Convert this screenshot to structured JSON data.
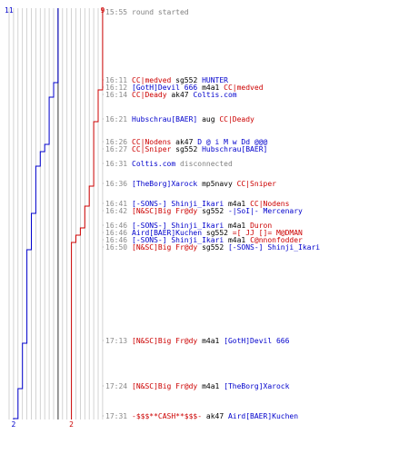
{
  "teams": {
    "blue": {
      "color": "#0000cc",
      "start_score": "11",
      "end_score": "2"
    },
    "red": {
      "color": "#cc0000",
      "start_score": "9",
      "end_score": "2"
    }
  },
  "colors": {
    "time": "#888888",
    "text_gray": "#808080",
    "grid": "#c8c8c8",
    "dash": "#aaaaaa",
    "axis": "#555555"
  },
  "events": [
    {
      "time": "15:55",
      "segments": [
        {
          "text": "round started",
          "color": "#808080"
        }
      ]
    },
    {
      "time": "16:11",
      "segments": [
        {
          "text": "CC|medved",
          "color": "#cc0000"
        },
        {
          "text": " sg552 ",
          "color": "#000000"
        },
        {
          "text": "HUNTER",
          "color": "#0000cc"
        }
      ]
    },
    {
      "time": "16:12",
      "segments": [
        {
          "text": "[GotH]Devil 666",
          "color": "#0000cc"
        },
        {
          "text": " m4a1 ",
          "color": "#000000"
        },
        {
          "text": "CC|medved",
          "color": "#cc0000"
        }
      ]
    },
    {
      "time": "16:14",
      "segments": [
        {
          "text": "CC|Deady",
          "color": "#cc0000"
        },
        {
          "text": " ak47 ",
          "color": "#000000"
        },
        {
          "text": "Coltis.com",
          "color": "#0000cc"
        }
      ]
    },
    {
      "time": "16:21",
      "segments": [
        {
          "text": "Hubschrau[BAER]",
          "color": "#0000cc"
        },
        {
          "text": " aug ",
          "color": "#000000"
        },
        {
          "text": "CC|Deady",
          "color": "#cc0000"
        }
      ]
    },
    {
      "time": "16:26",
      "segments": [
        {
          "text": "CC|Nodens",
          "color": "#cc0000"
        },
        {
          "text": " ak47 ",
          "color": "#000000"
        },
        {
          "text": "D @ i  M w Dd @@@",
          "color": "#0000cc"
        }
      ]
    },
    {
      "time": "16:27",
      "segments": [
        {
          "text": "CC|Sniper",
          "color": "#cc0000"
        },
        {
          "text": " sg552 ",
          "color": "#000000"
        },
        {
          "text": "Hubschrau[BAER]",
          "color": "#0000cc"
        }
      ]
    },
    {
      "time": "16:31",
      "segments": [
        {
          "text": "Coltis.com",
          "color": "#0000cc"
        },
        {
          "text": " disconnected",
          "color": "#808080"
        }
      ]
    },
    {
      "time": "16:36",
      "segments": [
        {
          "text": "[TheBorg]Xarock",
          "color": "#0000cc"
        },
        {
          "text": " mp5navy ",
          "color": "#000000"
        },
        {
          "text": "CC|Sniper",
          "color": "#cc0000"
        }
      ]
    },
    {
      "time": "16:41",
      "segments": [
        {
          "text": "[-SONS-] Shinji_Ikari",
          "color": "#0000cc"
        },
        {
          "text": " m4a1 ",
          "color": "#000000"
        },
        {
          "text": "CC|Nodens",
          "color": "#cc0000"
        }
      ]
    },
    {
      "time": "16:42",
      "segments": [
        {
          "text": "[N&SC]Big Fr@dy",
          "color": "#cc0000"
        },
        {
          "text": " sg552 ",
          "color": "#000000"
        },
        {
          "text": "-|SoI|- Mercenary",
          "color": "#0000cc"
        }
      ]
    },
    {
      "time": "16:46",
      "segments": [
        {
          "text": "[-SONS-] Shinji_Ikari",
          "color": "#0000cc"
        },
        {
          "text": " m4a1 ",
          "color": "#000000"
        },
        {
          "text": "Duron",
          "color": "#cc0000"
        }
      ]
    },
    {
      "time": "16:46",
      "segments": [
        {
          "text": "Aird[BAER]Kuchen",
          "color": "#0000cc"
        },
        {
          "text": " sg552 ",
          "color": "#000000"
        },
        {
          "text": "=[ JJ []= M@DMAN",
          "color": "#cc0000"
        }
      ]
    },
    {
      "time": "16:46",
      "segments": [
        {
          "text": "[-SONS-] Shinji_Ikari",
          "color": "#0000cc"
        },
        {
          "text": " m4a1 ",
          "color": "#000000"
        },
        {
          "text": "C@nnonfodder",
          "color": "#cc0000"
        }
      ]
    },
    {
      "time": "16:50",
      "segments": [
        {
          "text": "[N&SC]Big Fr@dy",
          "color": "#cc0000"
        },
        {
          "text": " sg552 ",
          "color": "#000000"
        },
        {
          "text": "[-SONS-] Shinji_Ikari",
          "color": "#0000cc"
        }
      ]
    },
    {
      "time": "17:13",
      "segments": [
        {
          "text": "[N&SC]Big Fr@dy",
          "color": "#cc0000"
        },
        {
          "text": " m4a1 ",
          "color": "#000000"
        },
        {
          "text": "[GotH]Devil 666",
          "color": "#0000cc"
        }
      ]
    },
    {
      "time": "17:24",
      "segments": [
        {
          "text": "[N&SC]Big Fr@dy",
          "color": "#cc0000"
        },
        {
          "text": " m4a1 ",
          "color": "#000000"
        },
        {
          "text": "[TheBorg]Xarock",
          "color": "#0000cc"
        }
      ]
    },
    {
      "time": "17:31",
      "segments": [
        {
          "text": "-$$$**CASH**$$$-",
          "color": "#cc0000"
        },
        {
          "text": " ak47 ",
          "color": "#000000"
        },
        {
          "text": "Aird[BAER]Kuchen",
          "color": "#0000cc"
        }
      ]
    }
  ]
}
